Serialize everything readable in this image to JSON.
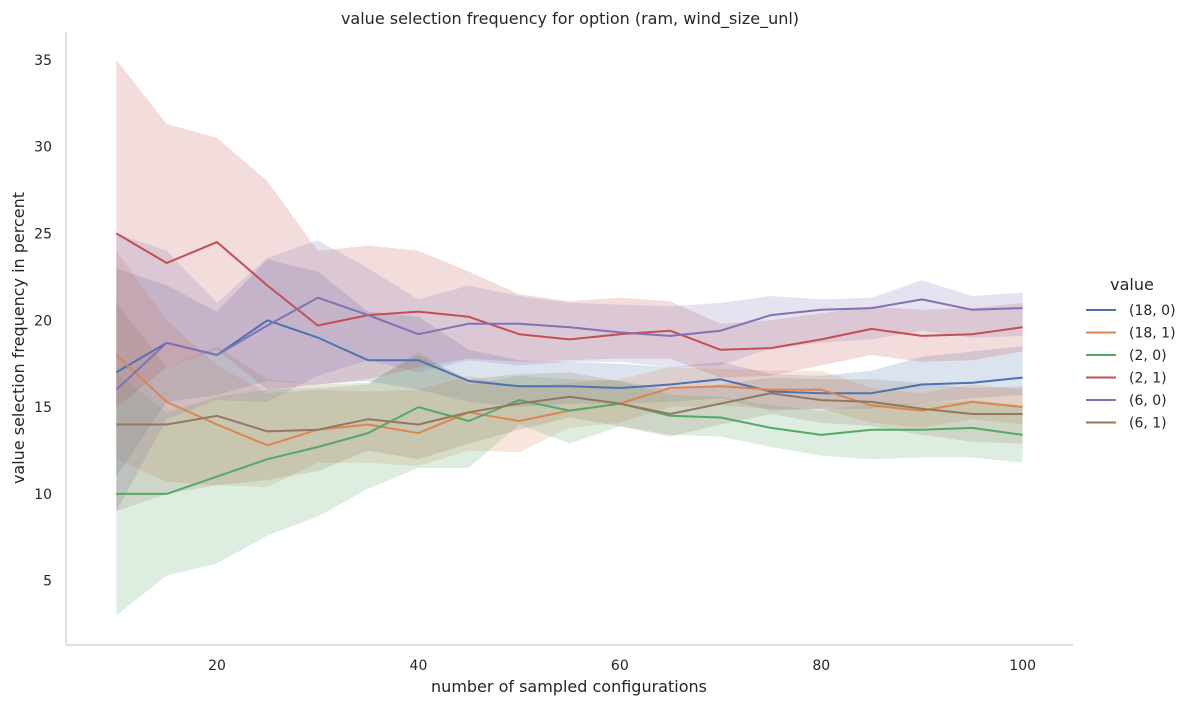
{
  "chart_data": {
    "type": "line",
    "title": "value selection frequency for option (ram, wind_size_unl)",
    "xlabel": "number of sampled configurations",
    "ylabel": "value selection frequency in percent",
    "xlim": [
      5,
      105
    ],
    "ylim": [
      1.3,
      36.6
    ],
    "xticks": [
      20,
      40,
      60,
      80,
      100
    ],
    "yticks": [
      5,
      10,
      15,
      20,
      25,
      30,
      35
    ],
    "grid": false,
    "legend": {
      "title": "value",
      "placement": "right"
    },
    "x": [
      10,
      15,
      20,
      25,
      30,
      35,
      40,
      45,
      50,
      55,
      60,
      65,
      70,
      75,
      80,
      85,
      90,
      95,
      100
    ],
    "series": [
      {
        "name": "(18, 0)",
        "color": "#4c72b0",
        "values": [
          17.0,
          18.7,
          18.0,
          20.0,
          19.0,
          17.7,
          17.7,
          16.5,
          16.2,
          16.2,
          16.1,
          16.3,
          16.6,
          15.9,
          15.8,
          15.8,
          16.3,
          16.4,
          16.7
        ],
        "lower": [
          11.0,
          15.3,
          15.7,
          16.5,
          16.3,
          16.5,
          16.0,
          15.3,
          15.0,
          15.2,
          15.2,
          15.3,
          15.5,
          14.8,
          14.9,
          14.9,
          15.2,
          15.5,
          15.7
        ],
        "upper": [
          23.0,
          22.0,
          20.5,
          23.5,
          22.8,
          20.5,
          20.2,
          18.3,
          17.7,
          17.6,
          17.5,
          17.3,
          17.6,
          16.9,
          16.8,
          17.1,
          17.9,
          18.2,
          18.5
        ]
      },
      {
        "name": "(18, 1)",
        "color": "#dd8452",
        "values": [
          18.0,
          15.3,
          14.0,
          12.8,
          13.7,
          14.0,
          13.5,
          14.7,
          14.2,
          14.8,
          15.2,
          16.1,
          16.2,
          16.0,
          16.0,
          15.1,
          14.8,
          15.3,
          15.0
        ],
        "lower": [
          12.0,
          10.7,
          10.5,
          10.4,
          11.8,
          11.8,
          11.6,
          12.5,
          12.4,
          13.8,
          14.1,
          15.0,
          15.1,
          14.9,
          14.9,
          14.1,
          13.8,
          14.3,
          14.0
        ],
        "upper": [
          24.0,
          20.0,
          17.4,
          15.8,
          16.0,
          15.9,
          16.0,
          16.8,
          16.1,
          16.4,
          16.6,
          17.3,
          17.2,
          17.1,
          17.1,
          16.1,
          15.8,
          16.3,
          16.0
        ]
      },
      {
        "name": "(2, 0)",
        "color": "#55a868",
        "values": [
          10.0,
          10.0,
          11.0,
          12.0,
          12.7,
          13.5,
          15.0,
          14.2,
          15.4,
          14.8,
          15.2,
          14.5,
          14.4,
          13.8,
          13.4,
          13.7,
          13.7,
          13.8,
          13.4
        ],
        "lower": [
          3.0,
          5.3,
          6.0,
          7.6,
          8.7,
          10.3,
          11.5,
          11.5,
          14.0,
          12.9,
          13.9,
          13.4,
          13.3,
          12.7,
          12.2,
          12.0,
          12.1,
          12.1,
          11.8
        ],
        "upper": [
          17.0,
          14.7,
          15.6,
          16.0,
          16.1,
          16.3,
          18.2,
          16.3,
          16.8,
          16.6,
          16.5,
          15.7,
          15.6,
          15.1,
          14.8,
          15.2,
          15.2,
          15.4,
          15.1
        ]
      },
      {
        "name": "(2, 1)",
        "color": "#c44e52",
        "values": [
          25.0,
          23.3,
          24.5,
          22.0,
          19.7,
          20.3,
          20.5,
          20.2,
          19.2,
          18.9,
          19.2,
          19.4,
          18.3,
          18.4,
          18.9,
          19.5,
          19.1,
          19.2,
          19.6
        ],
        "lower": [
          15.0,
          17.3,
          18.3,
          16.0,
          16.3,
          16.6,
          17.3,
          17.8,
          17.6,
          17.7,
          17.8,
          17.8,
          16.7,
          16.8,
          17.4,
          18.0,
          17.6,
          17.7,
          18.2
        ],
        "upper": [
          35.0,
          31.3,
          30.5,
          28.0,
          24.0,
          24.3,
          24.0,
          22.8,
          21.5,
          21.1,
          21.3,
          21.1,
          19.8,
          20.0,
          20.4,
          20.8,
          20.6,
          20.7,
          21.0
        ]
      },
      {
        "name": "(6, 0)",
        "color": "#8172b3",
        "values": [
          16.0,
          18.7,
          18.0,
          19.7,
          21.3,
          20.3,
          19.2,
          19.8,
          19.8,
          19.6,
          19.3,
          19.1,
          19.4,
          20.3,
          20.6,
          20.7,
          21.2,
          20.6,
          20.7
        ],
        "lower": [
          9.0,
          14.3,
          15.4,
          15.3,
          16.8,
          17.7,
          17.0,
          17.7,
          17.4,
          17.6,
          17.6,
          17.3,
          17.4,
          18.4,
          18.7,
          18.9,
          19.4,
          19.0,
          19.1
        ],
        "upper": [
          25.0,
          24.0,
          21.0,
          23.6,
          24.6,
          23.0,
          21.2,
          22.0,
          21.4,
          21.0,
          20.9,
          20.8,
          21.0,
          21.4,
          21.2,
          21.3,
          22.3,
          21.4,
          21.6
        ]
      },
      {
        "name": "(6, 1)",
        "color": "#937860",
        "values": [
          14.0,
          14.0,
          14.5,
          13.6,
          13.7,
          14.3,
          14.0,
          14.7,
          15.2,
          15.6,
          15.2,
          14.6,
          15.2,
          15.8,
          15.4,
          15.3,
          14.9,
          14.6,
          14.6
        ],
        "lower": [
          9.0,
          10.0,
          10.5,
          10.8,
          11.3,
          12.5,
          12.0,
          12.9,
          13.7,
          14.4,
          13.9,
          13.3,
          14.0,
          14.6,
          14.1,
          13.9,
          13.4,
          13.0,
          12.9
        ],
        "upper": [
          21.0,
          17.3,
          18.5,
          16.6,
          16.3,
          16.4,
          18.0,
          16.6,
          16.9,
          17.0,
          16.5,
          16.0,
          16.3,
          16.7,
          16.6,
          16.6,
          16.4,
          16.1,
          16.2
        ]
      }
    ]
  }
}
